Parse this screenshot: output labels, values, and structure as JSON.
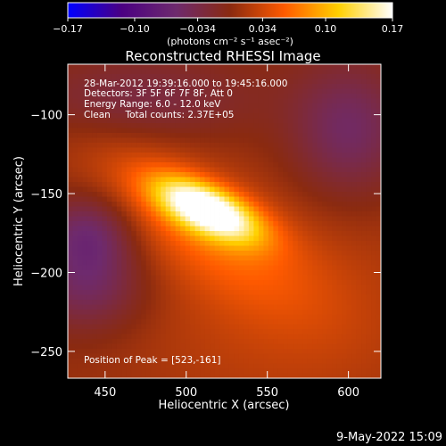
{
  "chart_data": {
    "type": "heatmap",
    "title": "Reconstructed RHESSI Image",
    "xlabel": "Heliocentric X (arcsec)",
    "ylabel": "Heliocentric Y (arcsec)",
    "xlim": [
      427,
      620
    ],
    "ylim": [
      -267,
      -68
    ],
    "x_ticks": [
      450,
      500,
      550,
      600
    ],
    "y_ticks": [
      -100,
      -150,
      -200,
      -250
    ],
    "colorbar": {
      "range": [
        -0.17,
        0.17
      ],
      "tick_values": [
        -0.17,
        -0.1,
        -0.034,
        0.034,
        0.1,
        0.17
      ],
      "tick_labels": [
        "−0.17",
        "−0.10",
        "−0.034",
        "0.034",
        "0.10",
        "0.17"
      ],
      "unit_label": "(photons cm⁻² s⁻¹ asec⁻²)",
      "colors": [
        "#0000ff",
        "#4b0082",
        "#6e2a6e",
        "#8a2a10",
        "#ff5a00",
        "#ffd000",
        "#ffffff"
      ]
    },
    "peak": {
      "x": 523,
      "y": -161,
      "value": 0.17
    },
    "sources": [
      {
        "x": 513,
        "y": -160,
        "sx": 24,
        "sy": 10,
        "rot": -25,
        "amp": 0.17
      },
      {
        "x": 505,
        "y": -168,
        "sx": 55,
        "sy": 22,
        "rot": -35,
        "amp": 0.05
      },
      {
        "x": 560,
        "y": -225,
        "sx": 70,
        "sy": 55,
        "rot": 0,
        "amp": 0.025
      },
      {
        "x": 440,
        "y": -175,
        "sx": 20,
        "sy": 18,
        "rot": 0,
        "amp": -0.06
      },
      {
        "x": 440,
        "y": -210,
        "sx": 25,
        "sy": 20,
        "rot": 0,
        "amp": -0.05
      },
      {
        "x": 600,
        "y": -110,
        "sx": 25,
        "sy": 30,
        "rot": 0,
        "amp": -0.055
      },
      {
        "x": 470,
        "y": -90,
        "sx": 50,
        "sy": 18,
        "rot": 0,
        "amp": -0.035
      }
    ],
    "annotations": [
      "28-Mar-2012 19:39:16.000 to 19:45:16.000",
      "Detectors: 3F 5F 6F 7F 8F, Att 0",
      "Energy Range: 6.0 - 12.0 keV",
      "Clean     Total counts: 2.37E+05",
      "Position of Peak = [523,-161]"
    ]
  },
  "footer": {
    "date": "9-May-2022 15:09"
  }
}
